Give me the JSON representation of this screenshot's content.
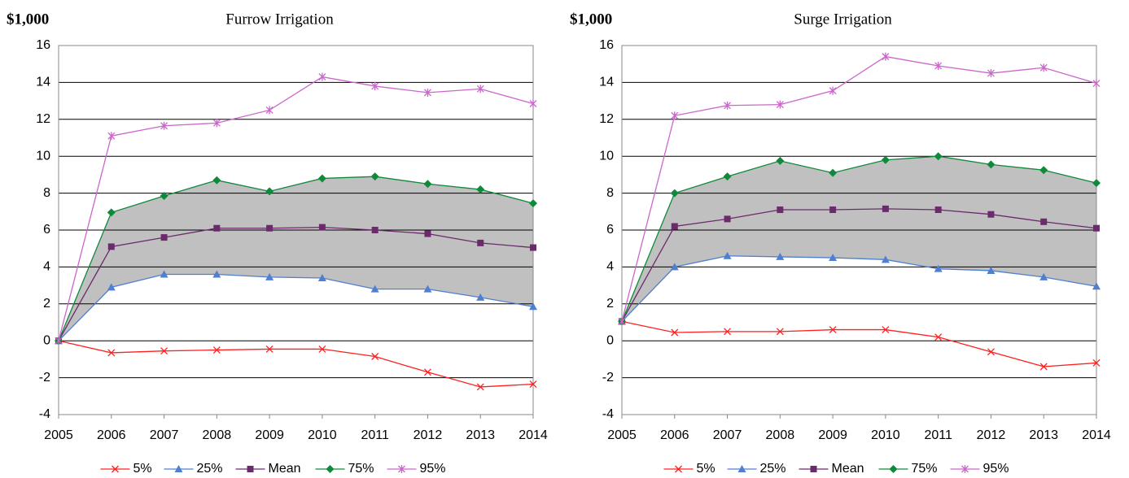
{
  "chart_data": [
    {
      "type": "line",
      "title": "Furrow Irrigation",
      "y_label": "$1,000",
      "x": [
        2005,
        2006,
        2007,
        2008,
        2009,
        2010,
        2011,
        2012,
        2013,
        2014
      ],
      "xlim": [
        2005,
        2014
      ],
      "ylim": [
        -4,
        16
      ],
      "yticks": [
        -4,
        -2,
        0,
        2,
        4,
        6,
        8,
        10,
        12,
        14,
        16
      ],
      "grid": true,
      "band_color": "#c0c0c0",
      "legend": "bottom",
      "series": [
        {
          "name": "5%",
          "color": "#ff2020",
          "marker": "x",
          "values": [
            0,
            -0.65,
            -0.55,
            -0.5,
            -0.45,
            -0.45,
            -0.85,
            -1.7,
            -2.5,
            -2.35
          ]
        },
        {
          "name": "25%",
          "color": "#4f7fd0",
          "marker": "triangle",
          "values": [
            0,
            2.9,
            3.6,
            3.6,
            3.45,
            3.4,
            2.8,
            2.8,
            2.35,
            1.85
          ]
        },
        {
          "name": "Mean",
          "color": "#6b2a6b",
          "marker": "square",
          "values": [
            0,
            5.1,
            5.6,
            6.1,
            6.1,
            6.15,
            6.0,
            5.8,
            5.3,
            5.05
          ]
        },
        {
          "name": "75%",
          "color": "#0e8a3a",
          "marker": "diamond",
          "values": [
            0,
            6.95,
            7.85,
            8.7,
            8.1,
            8.8,
            8.9,
            8.5,
            8.2,
            7.45
          ]
        },
        {
          "name": "95%",
          "color": "#cc66cc",
          "marker": "star",
          "values": [
            0,
            11.1,
            11.65,
            11.8,
            12.5,
            14.3,
            13.8,
            13.45,
            13.65,
            12.85
          ]
        }
      ]
    },
    {
      "type": "line",
      "title": "Surge Irrigation",
      "y_label": "$1,000",
      "x": [
        2005,
        2006,
        2007,
        2008,
        2009,
        2010,
        2011,
        2012,
        2013,
        2014
      ],
      "xlim": [
        2005,
        2014
      ],
      "ylim": [
        -4,
        16
      ],
      "yticks": [
        -4,
        -2,
        0,
        2,
        4,
        6,
        8,
        10,
        12,
        14,
        16
      ],
      "grid": true,
      "band_color": "#c0c0c0",
      "legend": "bottom",
      "series": [
        {
          "name": "5%",
          "color": "#ff2020",
          "marker": "x",
          "values": [
            1.05,
            0.45,
            0.5,
            0.5,
            0.6,
            0.6,
            0.2,
            -0.6,
            -1.4,
            -1.2
          ]
        },
        {
          "name": "25%",
          "color": "#4f7fd0",
          "marker": "triangle",
          "values": [
            1.05,
            4.0,
            4.6,
            4.55,
            4.5,
            4.4,
            3.9,
            3.8,
            3.45,
            2.95
          ]
        },
        {
          "name": "Mean",
          "color": "#6b2a6b",
          "marker": "square",
          "values": [
            1.05,
            6.2,
            6.6,
            7.1,
            7.1,
            7.15,
            7.1,
            6.85,
            6.45,
            6.1
          ]
        },
        {
          "name": "75%",
          "color": "#0e8a3a",
          "marker": "diamond",
          "values": [
            1.05,
            8.0,
            8.9,
            9.75,
            9.1,
            9.8,
            10.0,
            9.55,
            9.25,
            8.55
          ]
        },
        {
          "name": "95%",
          "color": "#cc66cc",
          "marker": "star",
          "values": [
            1.05,
            12.2,
            12.75,
            12.8,
            13.55,
            15.4,
            14.9,
            14.5,
            14.8,
            13.95
          ]
        }
      ]
    }
  ]
}
